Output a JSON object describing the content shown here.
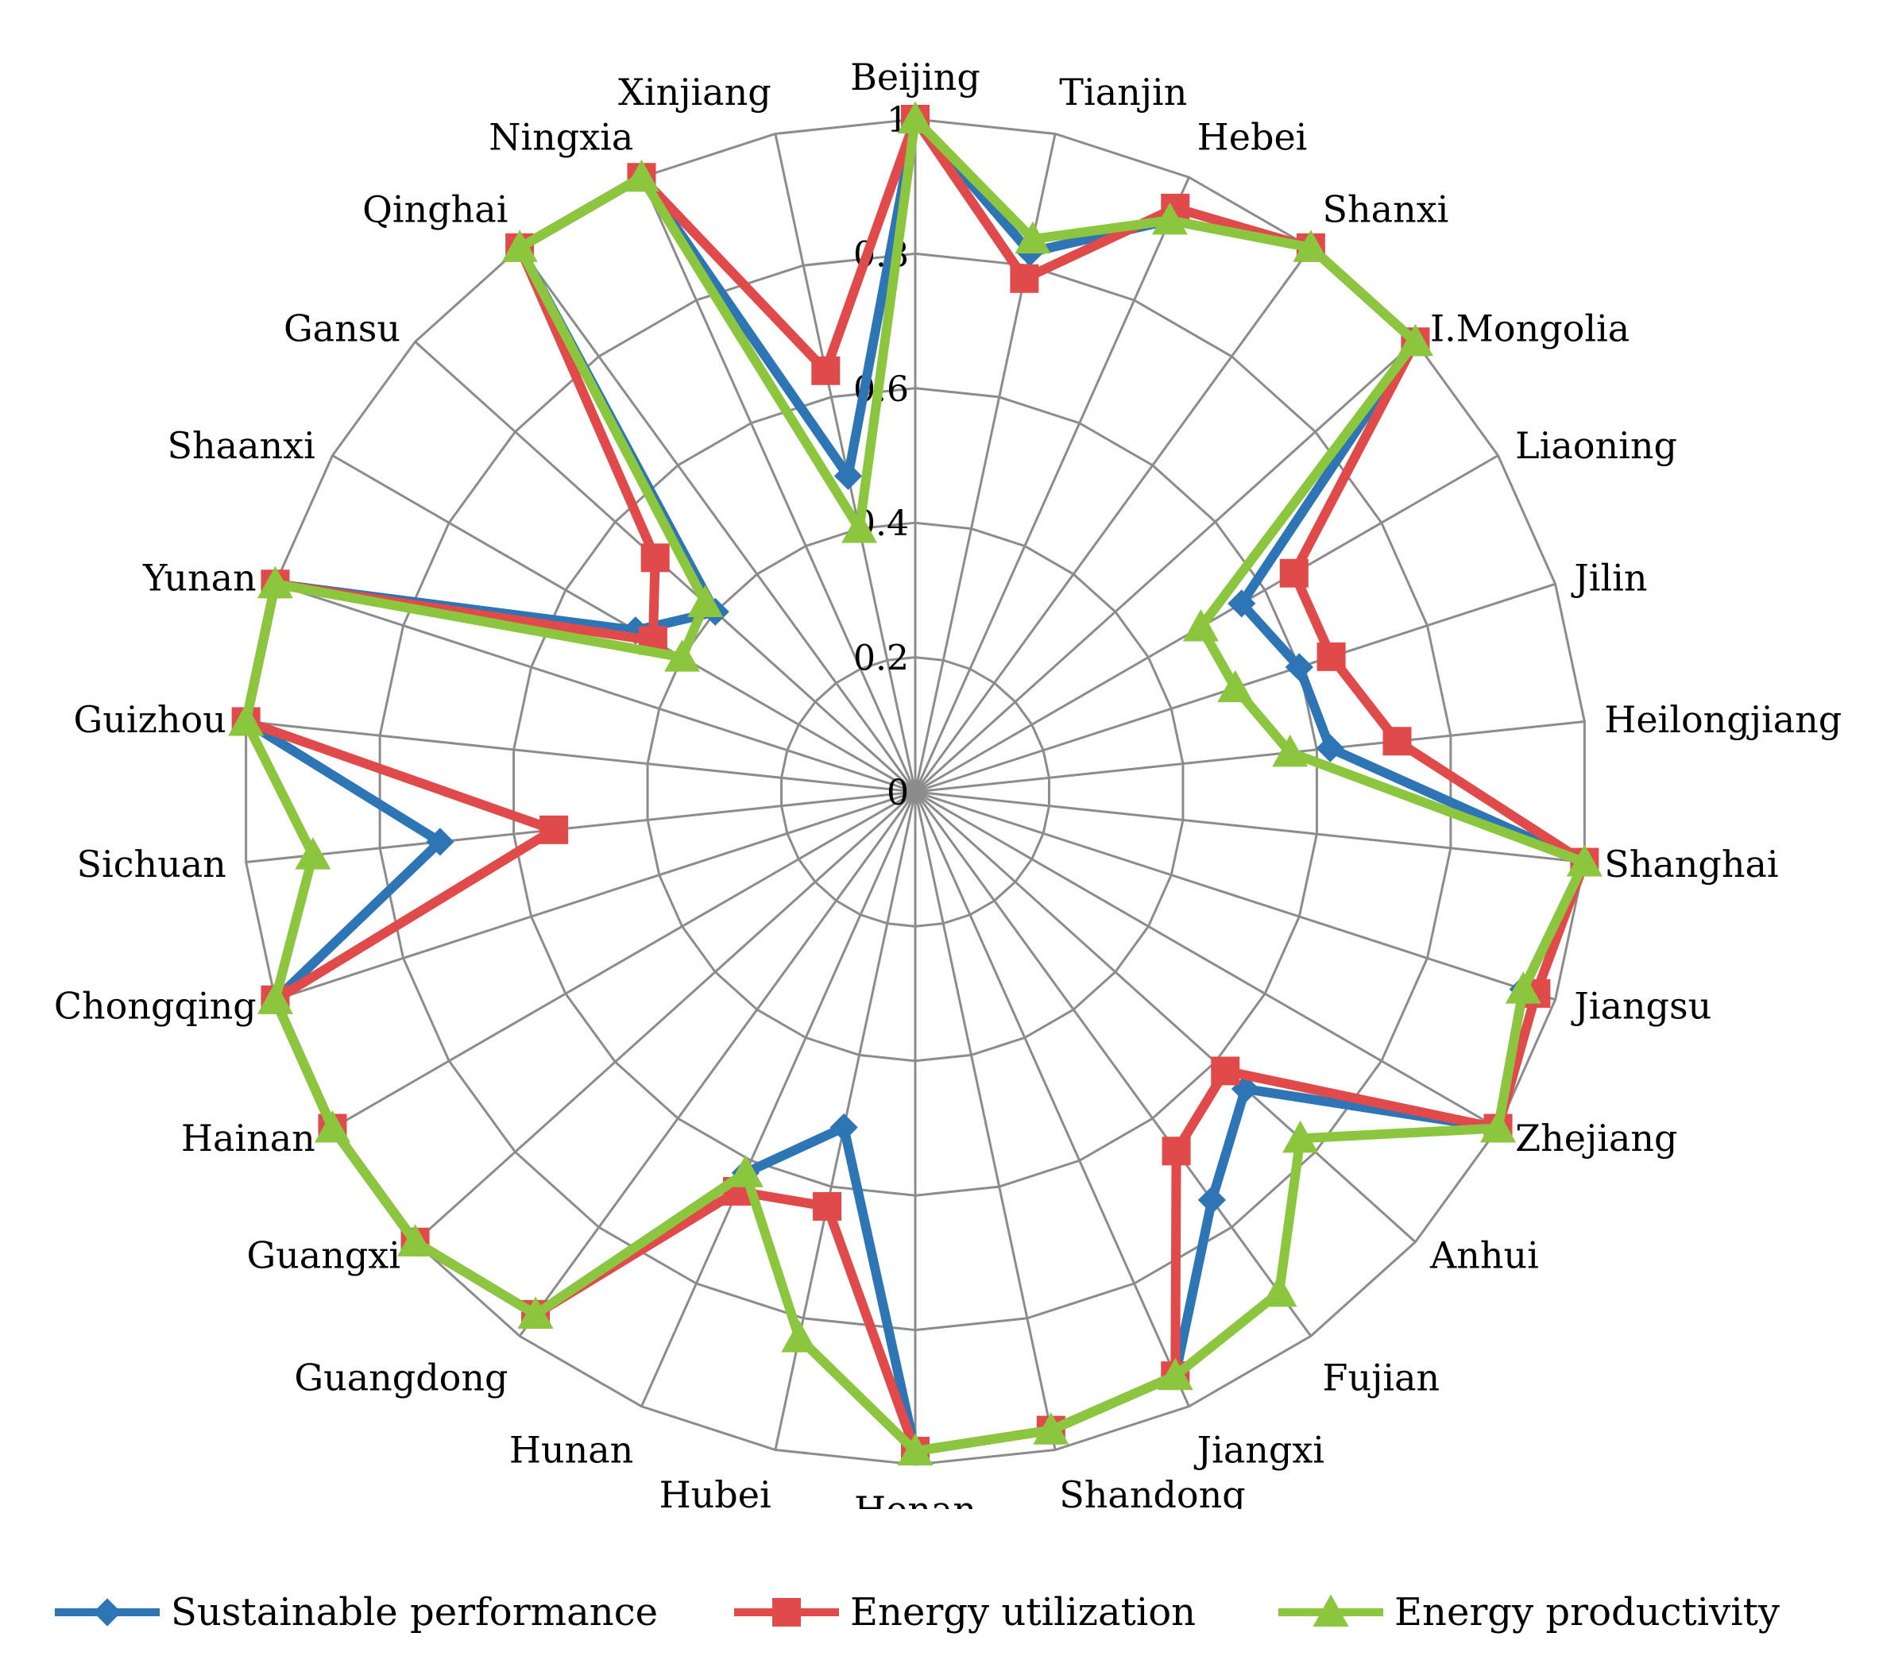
{
  "chart_data": {
    "type": "radar",
    "categories": [
      "Beijing",
      "Tianjin",
      "Hebei",
      "Shanxi",
      "I.Mongolia",
      "Liaoning",
      "Jilin",
      "Heilongjiang",
      "Shanghai",
      "Jiangsu",
      "Zhejiang",
      "Anhui",
      "Fujian",
      "Jiangxi",
      "Shandong",
      "Henan",
      "Hubei",
      "Hunan",
      "Guangdong",
      "Guangxi",
      "Hainan",
      "Chongqing",
      "Sichuan",
      "Guizhou",
      "Yunan",
      "Shaanxi",
      "Gansu",
      "Qinghai",
      "Ningxia",
      "Xinjiang"
    ],
    "rlim": [
      0,
      1
    ],
    "ticks": [
      0,
      0.2,
      0.4,
      0.6,
      0.8,
      1
    ],
    "tick_labels": [
      "0",
      "0.2",
      "0.4",
      "0.6",
      "0.8",
      "1"
    ],
    "grid": true,
    "legend_position": "bottom",
    "series": [
      {
        "name": "Sustainable performance",
        "color": "#2E75B6",
        "marker": "diamond",
        "values": [
          1,
          0.82,
          0.93,
          1,
          1,
          0.56,
          0.6,
          0.62,
          1,
          0.95,
          1,
          0.66,
          0.75,
          0.95,
          0.97,
          0.98,
          0.51,
          0.62,
          0.96,
          1,
          1,
          1,
          0.71,
          1,
          1,
          0.48,
          0.4,
          1,
          1,
          0.48
        ]
      },
      {
        "name": "Energy utilization",
        "color": "#E04A4A",
        "marker": "square",
        "values": [
          1,
          0.78,
          0.95,
          1,
          1,
          0.65,
          0.65,
          0.72,
          1,
          0.97,
          1,
          0.62,
          0.66,
          0.95,
          0.97,
          0.98,
          0.63,
          0.65,
          0.96,
          1,
          1,
          1,
          0.54,
          1,
          1,
          0.45,
          0.52,
          1,
          1,
          0.64
        ]
      },
      {
        "name": "Energy productivity",
        "color": "#8CC63F",
        "marker": "triangle",
        "values": [
          1,
          0.84,
          0.93,
          1,
          1,
          0.49,
          0.5,
          0.56,
          1,
          0.95,
          1,
          0.77,
          0.92,
          0.95,
          0.97,
          0.98,
          0.83,
          0.62,
          0.96,
          1,
          1,
          1,
          0.9,
          1,
          1,
          0.4,
          0.42,
          1,
          1,
          0.4
        ]
      }
    ]
  }
}
